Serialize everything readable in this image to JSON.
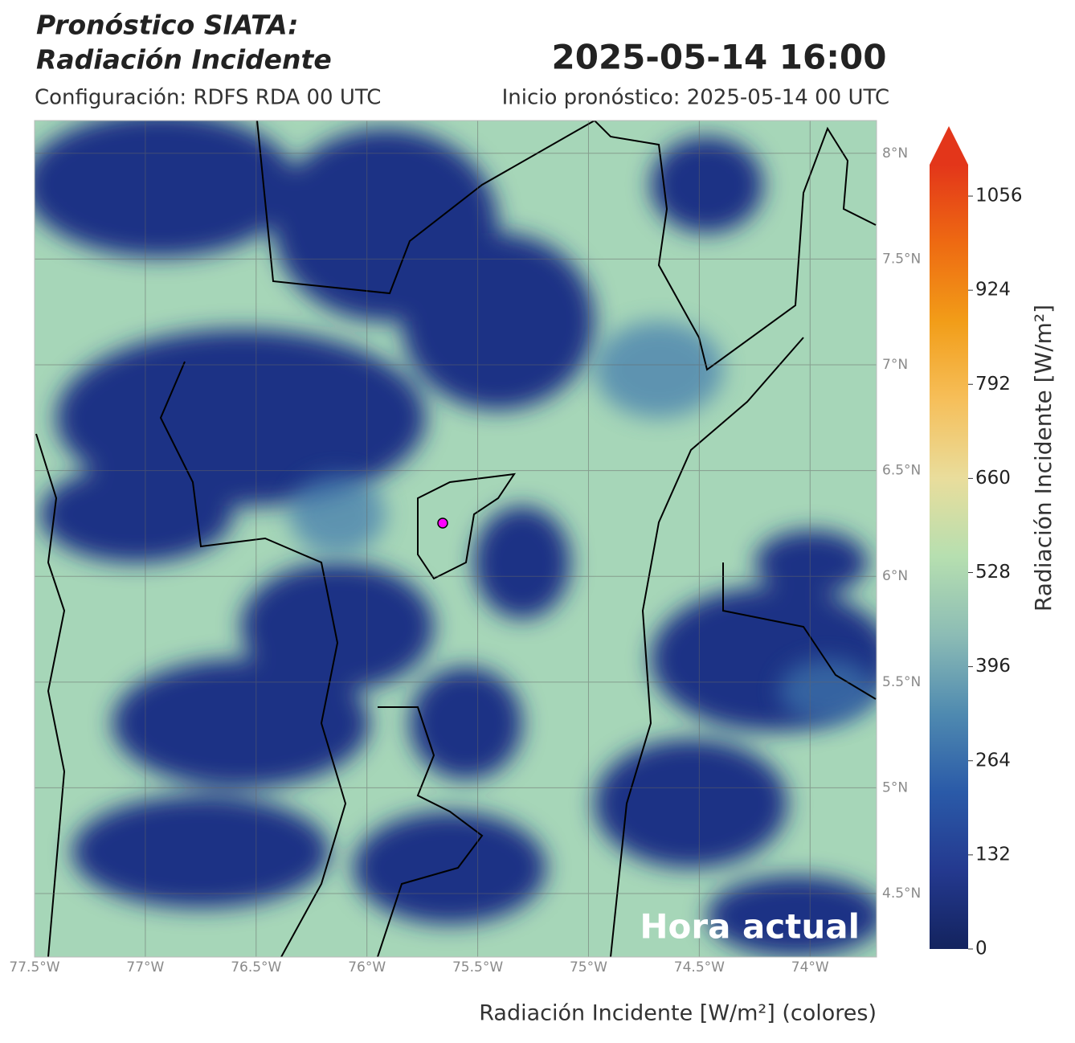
{
  "map": {
    "title": [
      "Pronóstico SIATA:",
      "Radiación Incidente"
    ],
    "valid_time": "2025-05-14 16:00",
    "configuration": "Configuración: RDFS RDA 00 UTC",
    "forecast_start": "Inicio pronóstico: 2025-05-14 00 UTC",
    "badge": "Hora actual",
    "xlabel": "Radiación Incidente [W/m²] (colores)",
    "xlim": [
      -77.5,
      -73.7
    ],
    "ylim": [
      4.2,
      8.155
    ],
    "xticks": [
      {
        "value": -77.5,
        "label": "77.5°W"
      },
      {
        "value": -77,
        "label": "77°W"
      },
      {
        "value": -76.5,
        "label": "76.5°W"
      },
      {
        "value": -76,
        "label": "76°W"
      },
      {
        "value": -75.5,
        "label": "75.5°W"
      },
      {
        "value": -75,
        "label": "75°W"
      },
      {
        "value": -74.5,
        "label": "74.5°W"
      },
      {
        "value": -74,
        "label": "74°W"
      }
    ],
    "yticks": [
      {
        "value": 4.5,
        "label": "4.5°N"
      },
      {
        "value": 5,
        "label": "5°N"
      },
      {
        "value": 5.5,
        "label": "5.5°N"
      },
      {
        "value": 6,
        "label": "6°N"
      },
      {
        "value": 6.5,
        "label": "6.5°N"
      },
      {
        "value": 7,
        "label": "7°N"
      },
      {
        "value": 7.5,
        "label": "7.5°N"
      },
      {
        "value": 8,
        "label": "8°N"
      }
    ],
    "grid": true
  },
  "colorbar": {
    "label": "Radiación Incidente [W/m²]",
    "lim": [
      0,
      1100
    ],
    "ticks": [
      0,
      132,
      264,
      396,
      528,
      660,
      792,
      924,
      1056
    ],
    "colors": [
      "#13235e",
      "#24398f",
      "#2a5aa8",
      "#4f8ab0",
      "#8cbcb5",
      "#b6dfb0",
      "#e9dd9c",
      "#f6bf5a",
      "#f29d18",
      "#ee6a12",
      "#e3361a"
    ]
  }
}
